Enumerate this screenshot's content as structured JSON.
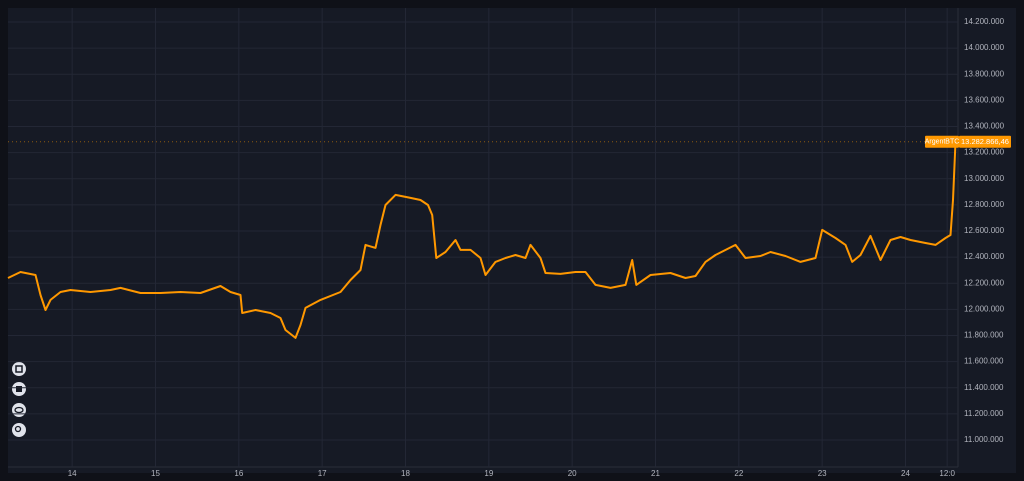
{
  "chart_data": {
    "type": "line",
    "x": [
      13.23,
      13.38,
      13.56,
      13.62,
      13.68,
      13.74,
      13.86,
      13.98,
      14.22,
      14.46,
      14.58,
      14.82,
      15.06,
      15.3,
      15.54,
      15.78,
      15.9,
      16.02,
      16.04,
      16.2,
      16.38,
      16.5,
      16.56,
      16.68,
      16.74,
      16.8,
      16.98,
      17.22,
      17.34,
      17.46,
      17.52,
      17.64,
      17.7,
      17.76,
      17.88,
      18.06,
      18.18,
      18.27,
      18.32,
      18.37,
      18.48,
      18.6,
      18.66,
      18.78,
      18.9,
      18.96,
      19.08,
      19.2,
      19.32,
      19.44,
      19.5,
      19.62,
      19.68,
      19.86,
      20.04,
      20.16,
      20.28,
      20.46,
      20.64,
      20.72,
      20.77,
      20.94,
      21.18,
      21.36,
      21.48,
      21.6,
      21.72,
      21.96,
      22.08,
      22.26,
      22.38,
      22.56,
      22.74,
      22.92,
      23.0,
      23.16,
      23.28,
      23.36,
      23.46,
      23.58,
      23.7,
      23.82,
      23.94,
      24.06,
      24.24,
      24.36,
      24.48,
      24.54,
      24.57,
      24.6
    ],
    "series": [
      {
        "name": "ArgentBTC",
        "color": "#ff9800",
        "values": [
          12240000,
          12286000,
          12263000,
          12110000,
          11995000,
          12072000,
          12133000,
          12148000,
          12133000,
          12148000,
          12164000,
          12125000,
          12125000,
          12133000,
          12125000,
          12179000,
          12133000,
          12110000,
          11972000,
          11995000,
          11972000,
          11934000,
          11842000,
          11781000,
          11880000,
          12011000,
          12072000,
          12133000,
          12225000,
          12301000,
          12493000,
          12470000,
          12646000,
          12799000,
          12876000,
          12853000,
          12837000,
          12799000,
          12722000,
          12393000,
          12439000,
          12531000,
          12455000,
          12455000,
          12393000,
          12263000,
          12363000,
          12393000,
          12416000,
          12393000,
          12493000,
          12393000,
          12278000,
          12271000,
          12286000,
          12286000,
          12187000,
          12164000,
          12187000,
          12378000,
          12187000,
          12263000,
          12278000,
          12240000,
          12255000,
          12363000,
          12416000,
          12493000,
          12393000,
          12408000,
          12439000,
          12408000,
          12363000,
          12393000,
          12608000,
          12546000,
          12493000,
          12363000,
          12416000,
          12562000,
          12378000,
          12531000,
          12554000,
          12531000,
          12508000,
          12493000,
          12546000,
          12569000,
          12837000,
          13282866.46
        ],
        "last_value_label": "13.282.866,46"
      }
    ],
    "xlim": [
      13.23,
      24.63
    ],
    "xticks": [
      14,
      15,
      16,
      17,
      18,
      19,
      20,
      21,
      22,
      23,
      24,
      {
        "value": 24.5,
        "label": "12:0"
      }
    ],
    "ylim": [
      10793000,
      14307000
    ],
    "yticks": [
      {
        "value": 11000000,
        "label": "11.000.000"
      },
      {
        "value": 11200000,
        "label": "11.200.000"
      },
      {
        "value": 11400000,
        "label": "11.400.000"
      },
      {
        "value": 11600000,
        "label": "11.600.000"
      },
      {
        "value": 11800000,
        "label": "11.800.000"
      },
      {
        "value": 12000000,
        "label": "12.000.000"
      },
      {
        "value": 12200000,
        "label": "12.200.000"
      },
      {
        "value": 12400000,
        "label": "12.400.000"
      },
      {
        "value": 12600000,
        "label": "12.600.000"
      },
      {
        "value": 12800000,
        "label": "12.800.000"
      },
      {
        "value": 13000000,
        "label": "13.000.000"
      },
      {
        "value": 13200000,
        "label": "13.200.000"
      },
      {
        "value": 13400000,
        "label": "13.400.000"
      },
      {
        "value": 13600000,
        "label": "13.600.000"
      },
      {
        "value": 13800000,
        "label": "13.800.000"
      },
      {
        "value": 14000000,
        "label": "14.000.000"
      },
      {
        "value": 14200000,
        "label": "14.200.000"
      }
    ],
    "grid": true
  }
}
